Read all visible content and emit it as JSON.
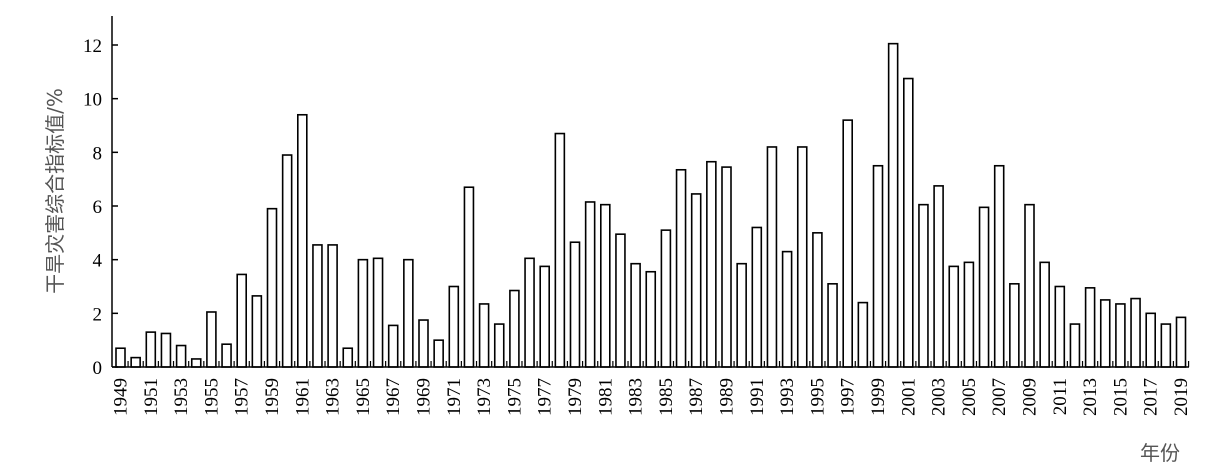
{
  "chart_data": {
    "type": "bar",
    "ylabel": "干旱灾害综合指标值/%",
    "xlabel": "年份",
    "ylim": [
      0,
      13
    ],
    "yticks": [
      0,
      2,
      4,
      6,
      8,
      10,
      12
    ],
    "grid": false,
    "x": [
      1949,
      1950,
      1951,
      1952,
      1953,
      1954,
      1955,
      1956,
      1957,
      1958,
      1959,
      1960,
      1961,
      1962,
      1963,
      1964,
      1965,
      1966,
      1967,
      1968,
      1969,
      1970,
      1971,
      1972,
      1973,
      1974,
      1975,
      1976,
      1977,
      1978,
      1979,
      1980,
      1981,
      1982,
      1983,
      1984,
      1985,
      1986,
      1987,
      1988,
      1989,
      1990,
      1991,
      1992,
      1993,
      1994,
      1995,
      1996,
      1997,
      1998,
      1999,
      2000,
      2001,
      2002,
      2003,
      2004,
      2005,
      2006,
      2007,
      2008,
      2009,
      2010,
      2011,
      2012,
      2013,
      2014,
      2015,
      2016,
      2017,
      2018,
      2019
    ],
    "xtick_labels": [
      "1949",
      "1951",
      "1953",
      "1955",
      "1957",
      "1959",
      "1961",
      "1963",
      "1965",
      "1967",
      "1969",
      "1971",
      "1973",
      "1975",
      "1977",
      "1979",
      "1981",
      "1983",
      "1985",
      "1987",
      "1989",
      "1991",
      "1993",
      "1995",
      "1997",
      "1999",
      "2001",
      "2003",
      "2005",
      "2007",
      "2009",
      "2011",
      "2013",
      "2015",
      "2017",
      "2019"
    ],
    "values": [
      0.7,
      0.35,
      1.3,
      1.25,
      0.8,
      0.3,
      2.05,
      0.85,
      3.45,
      2.65,
      5.9,
      7.9,
      9.4,
      4.55,
      4.55,
      0.7,
      4.0,
      4.05,
      1.55,
      4.0,
      1.75,
      1.0,
      3.0,
      6.7,
      2.35,
      1.6,
      2.85,
      4.05,
      3.75,
      8.7,
      4.65,
      6.15,
      6.05,
      4.95,
      3.85,
      3.55,
      5.1,
      7.35,
      6.45,
      7.65,
      7.45,
      3.85,
      5.2,
      8.2,
      4.3,
      8.2,
      5.0,
      3.1,
      9.2,
      2.4,
      7.5,
      12.05,
      10.75,
      6.05,
      6.75,
      3.75,
      3.9,
      5.95,
      7.5,
      3.1,
      6.05,
      3.9,
      3.0,
      1.6,
      2.95,
      2.5,
      2.35,
      2.55,
      2.0,
      1.6,
      1.85
    ]
  }
}
